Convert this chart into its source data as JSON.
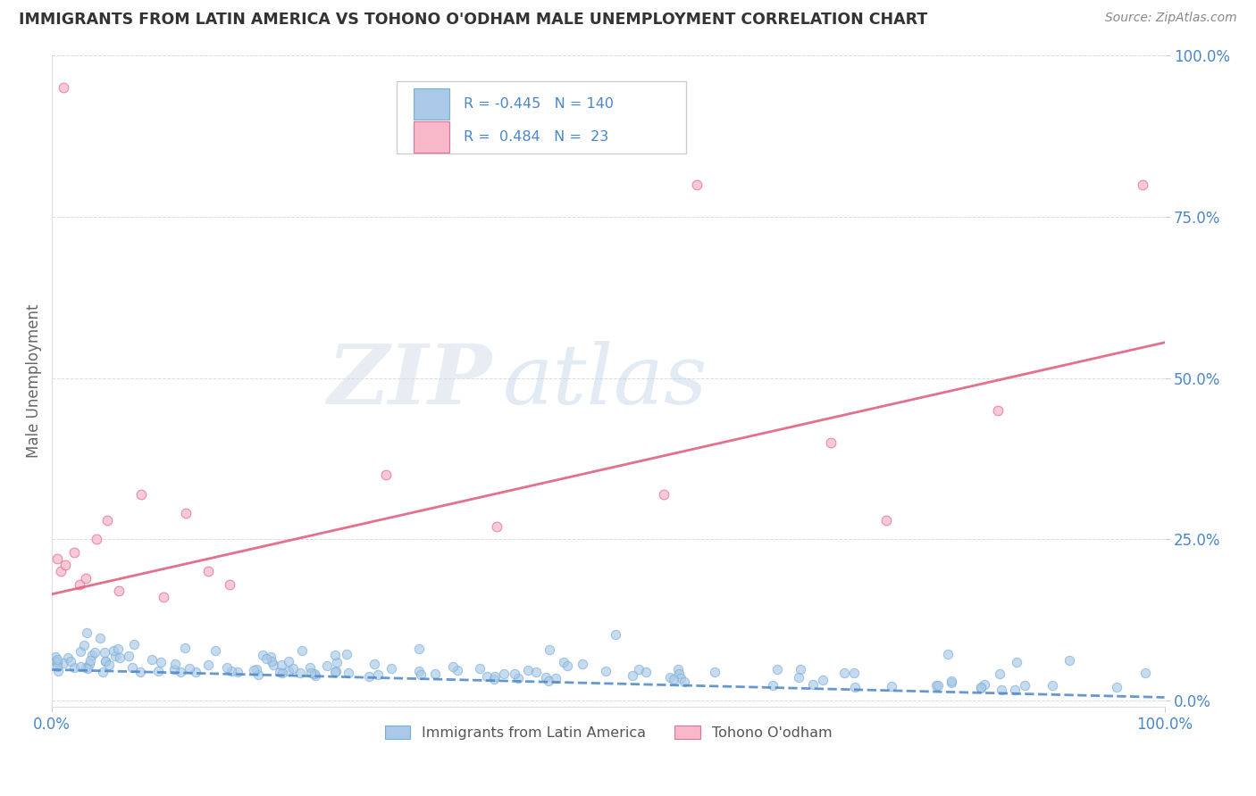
{
  "title": "IMMIGRANTS FROM LATIN AMERICA VS TOHONO O'ODHAM MALE UNEMPLOYMENT CORRELATION CHART",
  "source": "Source: ZipAtlas.com",
  "ylabel": "Male Unemployment",
  "xlim": [
    0,
    1.0
  ],
  "ylim": [
    -0.01,
    1.0
  ],
  "ytick_labels": [
    "0.0%",
    "25.0%",
    "50.0%",
    "75.0%",
    "100.0%"
  ],
  "ytick_vals": [
    0,
    0.25,
    0.5,
    0.75,
    1.0
  ],
  "xtick_labels": [
    "0.0%",
    "100.0%"
  ],
  "xtick_vals": [
    0,
    1.0
  ],
  "series1": {
    "name": "Immigrants from Latin America",
    "R": -0.445,
    "N": 140,
    "dot_color": "#aac8e8",
    "edge_color": "#7aafd4",
    "line_color": "#4a86c8",
    "trend_y0": 0.048,
    "trend_y1": 0.005
  },
  "series2": {
    "name": "Tohono O'odham",
    "R": 0.484,
    "N": 23,
    "dot_color": "#f9b8ca",
    "edge_color": "#e07090",
    "line_color": "#e06080",
    "trend_y0": 0.165,
    "trend_y1": 0.555
  },
  "watermark_text": "ZIP",
  "watermark_text2": "atlas",
  "bg_color": "#ffffff",
  "grid_color": "#cccccc",
  "title_color": "#333333",
  "axis_label_color": "#666666",
  "tick_label_color": "#4a86c8",
  "source_color": "#888888",
  "legend_color": "#4a86c8"
}
